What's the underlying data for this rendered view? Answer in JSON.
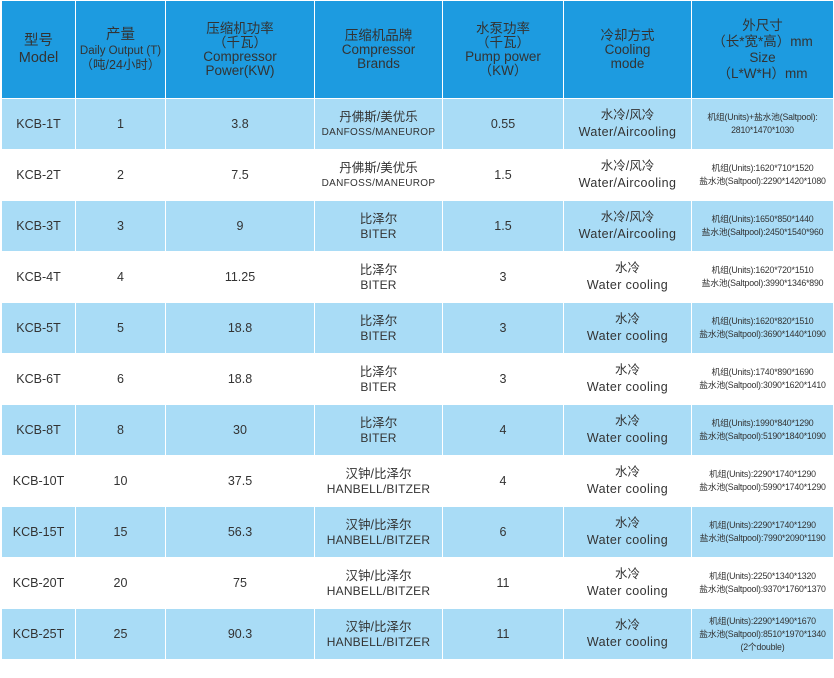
{
  "headers": [
    {
      "lines": [
        "型号",
        "Model"
      ]
    },
    {
      "lines": [
        "产量",
        "Daily Output (T)",
        "（吨/24小时）"
      ]
    },
    {
      "lines": [
        "压缩机功率",
        "（千瓦）",
        "Compressor",
        "Power(KW)"
      ]
    },
    {
      "lines": [
        "压缩机品牌",
        "Compressor",
        "Brands"
      ]
    },
    {
      "lines": [
        "水泵功率",
        "（千瓦）",
        "Pump power",
        "（KW）"
      ]
    },
    {
      "lines": [
        "冷却方式",
        "Cooling",
        "mode"
      ]
    },
    {
      "lines": [
        "外尺寸",
        "（长*宽*高）mm",
        "Size",
        "（L*W*H）mm"
      ]
    }
  ],
  "rows": [
    {
      "model": "KCB-1T",
      "output": "1",
      "power": "3.8",
      "brand_zh": "丹佛斯/美优乐",
      "brand_en": "DANFOSS/MANEUROP",
      "pump": "0.55",
      "cool_zh": "水冷/风冷",
      "cool_en": "Water/Aircooling",
      "size": [
        "机组(Units)+盐水池(Saltpool):",
        "2810*1470*1030"
      ]
    },
    {
      "model": "KCB-2T",
      "output": "2",
      "power": "7.5",
      "brand_zh": "丹佛斯/美优乐",
      "brand_en": "DANFOSS/MANEUROP",
      "pump": "1.5",
      "cool_zh": "水冷/风冷",
      "cool_en": "Water/Aircooling",
      "size": [
        "机组(Units):1620*710*1520",
        "盐水池(Saltpool):2290*1420*1080"
      ]
    },
    {
      "model": "KCB-3T",
      "output": "3",
      "power": "9",
      "brand_zh": "比泽尔",
      "brand_en": "BITER",
      "pump": "1.5",
      "cool_zh": "水冷/风冷",
      "cool_en": "Water/Aircooling",
      "size": [
        "机组(Units):1650*850*1440",
        "盐水池(Saltpool):2450*1540*960"
      ]
    },
    {
      "model": "KCB-4T",
      "output": "4",
      "power": "11.25",
      "brand_zh": "比泽尔",
      "brand_en": "BITER",
      "pump": "3",
      "cool_zh": "水冷",
      "cool_en": "Water cooling",
      "size": [
        "机组(Units):1620*720*1510",
        "盐水池(Saltpool):3990*1346*890"
      ]
    },
    {
      "model": "KCB-5T",
      "output": "5",
      "power": "18.8",
      "brand_zh": "比泽尔",
      "brand_en": "BITER",
      "pump": "3",
      "cool_zh": "水冷",
      "cool_en": "Water cooling",
      "size": [
        "机组(Units):1620*820*1510",
        "盐水池(Saltpool):3690*1440*1090"
      ]
    },
    {
      "model": "KCB-6T",
      "output": "6",
      "power": "18.8",
      "brand_zh": "比泽尔",
      "brand_en": "BITER",
      "pump": "3",
      "cool_zh": "水冷",
      "cool_en": "Water cooling",
      "size": [
        "机组(Units):1740*890*1690",
        "盐水池(Saltpool):3090*1620*1410"
      ]
    },
    {
      "model": "KCB-8T",
      "output": "8",
      "power": "30",
      "brand_zh": "比泽尔",
      "brand_en": "BITER",
      "pump": "4",
      "cool_zh": "水冷",
      "cool_en": "Water cooling",
      "size": [
        "机组(Units):1990*840*1290",
        "盐水池(Saltpool):5190*1840*1090"
      ]
    },
    {
      "model": "KCB-10T",
      "output": "10",
      "power": "37.5",
      "brand_zh": "汉钟/比泽尔",
      "brand_en": "HANBELL/BITZER",
      "pump": "4",
      "cool_zh": "水冷",
      "cool_en": "Water cooling",
      "size": [
        "机组(Units):2290*1740*1290",
        "盐水池(Saltpool):5990*1740*1290"
      ]
    },
    {
      "model": "KCB-15T",
      "output": "15",
      "power": "56.3",
      "brand_zh": "汉钟/比泽尔",
      "brand_en": "HANBELL/BITZER",
      "pump": "6",
      "cool_zh": "水冷",
      "cool_en": "Water cooling",
      "size": [
        "机组(Units):2290*1740*1290",
        "盐水池(Saltpool):7990*2090*1190"
      ]
    },
    {
      "model": "KCB-20T",
      "output": "20",
      "power": "75",
      "brand_zh": "汉钟/比泽尔",
      "brand_en": "HANBELL/BITZER",
      "pump": "11",
      "cool_zh": "水冷",
      "cool_en": "Water cooling",
      "size": [
        "机组(Units):2250*1340*1320",
        "盐水池(Saltpool):9370*1760*1370"
      ]
    },
    {
      "model": "KCB-25T",
      "output": "25",
      "power": "90.3",
      "brand_zh": "汉钟/比泽尔",
      "brand_en": "HANBELL/BITZER",
      "pump": "11",
      "cool_zh": "水冷",
      "cool_en": "Water cooling",
      "size": [
        "机组(Units):2290*1490*1670",
        "盐水池(Saltpool):8510*1970*1340",
        "(2个double)"
      ]
    }
  ],
  "colors": {
    "header_bg": "#1d9be0",
    "stripe": "#a9dcf6",
    "row_bg": "#ffffff",
    "text": "#333333"
  }
}
